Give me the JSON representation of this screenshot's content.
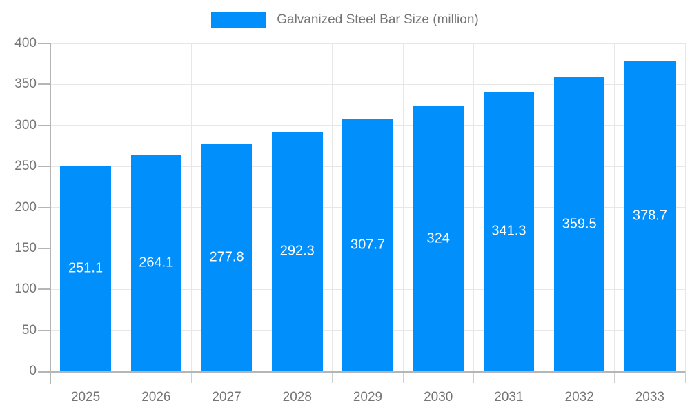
{
  "legend": {
    "label": "Galvanized Steel Bar Size (million)",
    "swatch_color": "#008FFB"
  },
  "chart_data": {
    "type": "bar",
    "title": "Galvanized Steel Bar Size (million)",
    "series_name": "Galvanized Steel Bar Size (million)",
    "categories": [
      "2025",
      "2026",
      "2027",
      "2028",
      "2029",
      "2030",
      "2031",
      "2032",
      "2033"
    ],
    "values": [
      251.1,
      264.1,
      277.8,
      292.3,
      307.7,
      324,
      341.3,
      359.5,
      378.7
    ],
    "value_labels": [
      "251.1",
      "264.1",
      "277.8",
      "292.3",
      "307.7",
      "324",
      "341.3",
      "359.5",
      "378.7"
    ],
    "xlabel": "",
    "ylabel": "",
    "ylim": [
      0,
      400
    ],
    "yticks": [
      0,
      50,
      100,
      150,
      200,
      250,
      300,
      350,
      400
    ],
    "grid": true,
    "legend_position": "top",
    "value_label_position": "center-of-bar"
  },
  "colors": {
    "bar": "#008FFB",
    "grid": "#e7e7e7",
    "axis": "#b5b5b5",
    "tick": "#cfcfcf",
    "axis_label": "#757575",
    "value_label": "#ffffff",
    "background": "#ffffff"
  }
}
